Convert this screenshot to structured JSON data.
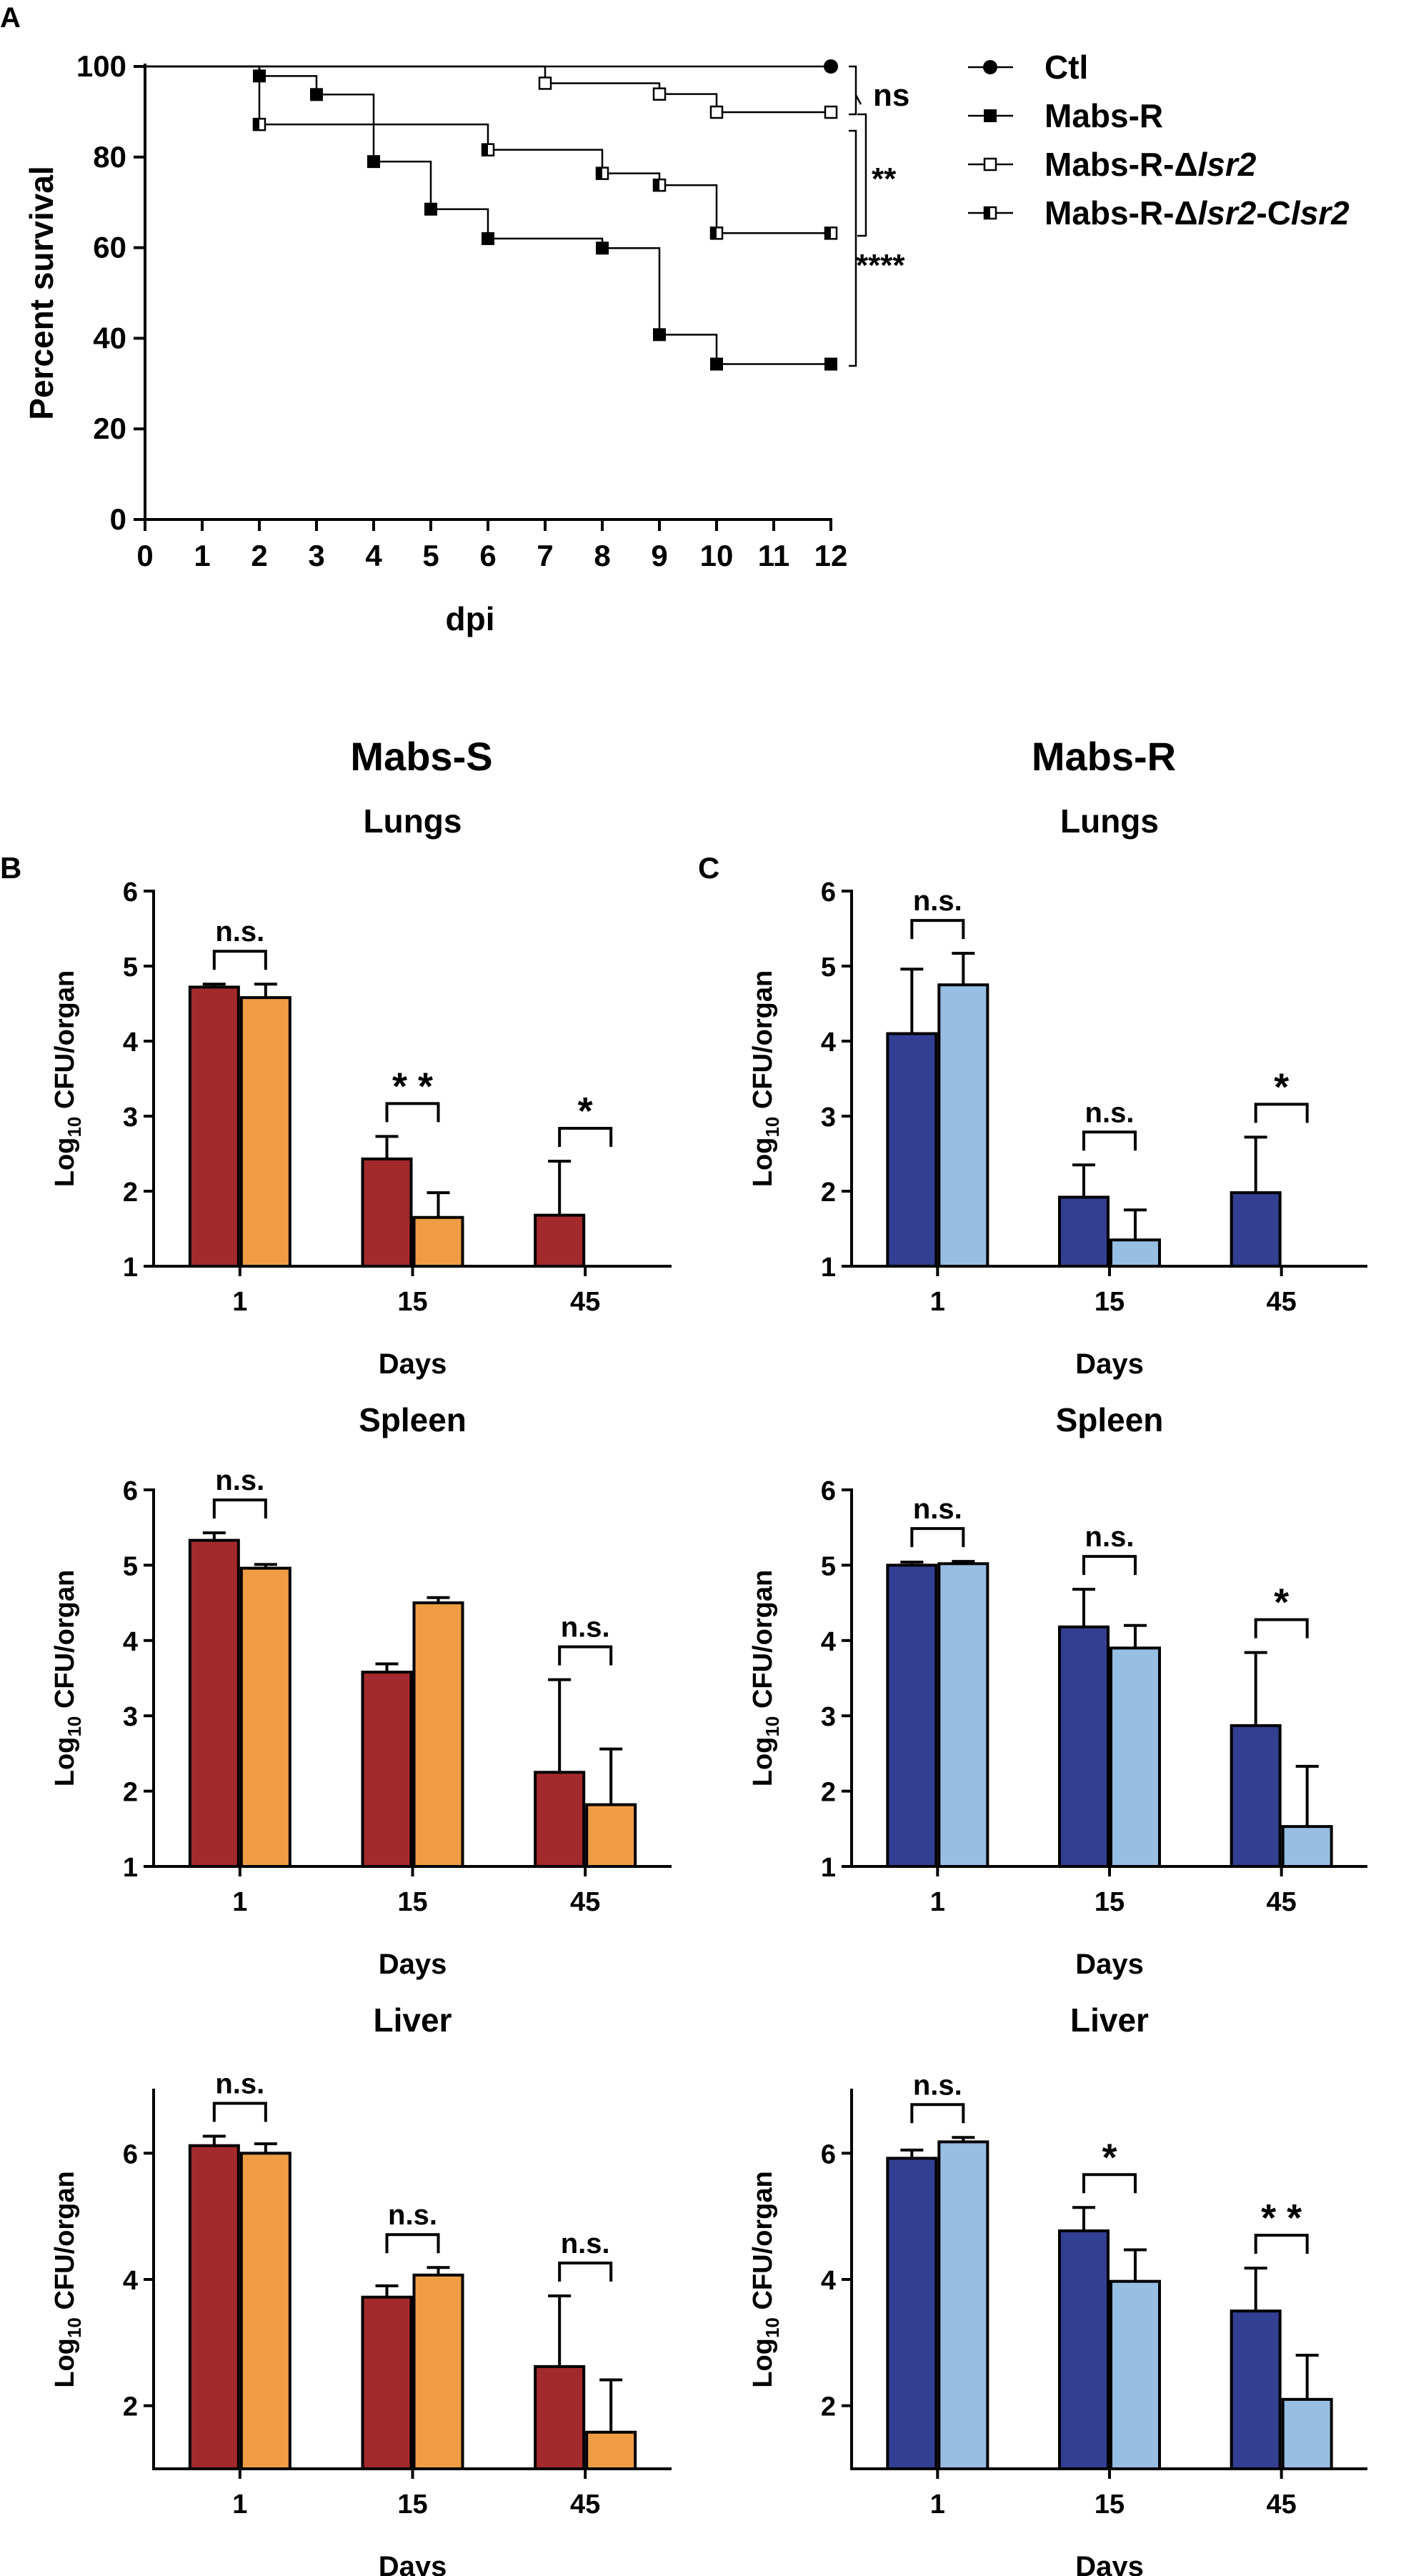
{
  "figure": {
    "column_titles": [
      "Mabs-S",
      "Mabs-R"
    ]
  },
  "chart_data": [
    {
      "panel_label": "A",
      "type": "line",
      "subtype": "kaplan-meier",
      "title": "",
      "xlabel": "dpi",
      "ylabel": "Percent survival",
      "xlim": [
        0,
        12
      ],
      "ylim": [
        0,
        100
      ],
      "xticks": [
        "0",
        "1",
        "2",
        "3",
        "4",
        "5",
        "6",
        "7",
        "8",
        "9",
        "10",
        "11",
        "12"
      ],
      "yticks": [
        "0",
        "20",
        "40",
        "60",
        "80",
        "100"
      ],
      "legend_position": "right",
      "series": [
        {
          "name": "Ctl",
          "marker": "circle",
          "steps": [
            [
              0,
              100
            ],
            [
              12,
              100
            ]
          ],
          "marks": [
            [
              12,
              100
            ]
          ]
        },
        {
          "name": "Mabs-R",
          "marker": "square-filled",
          "steps": [
            [
              0,
              100
            ],
            [
              2,
              97.9
            ],
            [
              3,
              93.8
            ],
            [
              4,
              79
            ],
            [
              5,
              68.5
            ],
            [
              6,
              62
            ],
            [
              8,
              59.9
            ],
            [
              9,
              40.8
            ],
            [
              10,
              34.3
            ],
            [
              12,
              34.3
            ]
          ],
          "marks": [
            [
              2,
              97.9
            ],
            [
              3,
              93.8
            ],
            [
              4,
              79
            ],
            [
              5,
              68.5
            ],
            [
              6,
              62
            ],
            [
              8,
              59.9
            ],
            [
              9,
              40.8
            ],
            [
              10,
              34.3
            ],
            [
              12,
              34.3
            ]
          ]
        },
        {
          "name": "Mabs-R-Δlsr2",
          "name_prefix": "Mabs-R-Δ",
          "name_italic": "lsr2",
          "marker": "square-open",
          "steps": [
            [
              0,
              100
            ],
            [
              7,
              96.3
            ],
            [
              9,
              93.9
            ],
            [
              10,
              89.9
            ],
            [
              12,
              89.9
            ]
          ],
          "marks": [
            [
              7,
              96.3
            ],
            [
              9,
              93.9
            ],
            [
              10,
              89.9
            ],
            [
              12,
              89.9
            ]
          ]
        },
        {
          "name": "Mabs-R-Δlsr2-Clsr2",
          "name_prefix": "Mabs-R-Δ",
          "name_italic": "lsr2",
          "name_mid": "-C",
          "name_italic2": "lsr2",
          "marker": "square-half",
          "steps": [
            [
              0,
              100
            ],
            [
              2,
              87.2
            ],
            [
              6,
              81.6
            ],
            [
              8,
              76.4
            ],
            [
              9,
              73.8
            ],
            [
              10,
              63.2
            ],
            [
              12,
              63.2
            ]
          ],
          "marks": [
            [
              2,
              87.2
            ],
            [
              6,
              81.6
            ],
            [
              8,
              76.4
            ],
            [
              9,
              73.8
            ],
            [
              10,
              63.2
            ],
            [
              12,
              63.2
            ]
          ]
        }
      ],
      "annotations": [
        "ns",
        "**",
        "****"
      ]
    },
    {
      "panel_label": "B",
      "type": "bar",
      "title": "Lungs",
      "strain": "Mabs-S",
      "xlabel": "Days",
      "ylabel_prefix": "Log",
      "ylabel_sub": "10",
      "ylabel_suffix": " CFU/organ",
      "categories": [
        "1",
        "15",
        "45"
      ],
      "ylim": [
        1,
        6
      ],
      "yticks": [
        "1",
        "2",
        "3",
        "4",
        "5",
        "6"
      ],
      "colors": [
        "#A32A2C",
        "#EE9D45"
      ],
      "series": [
        {
          "values": [
            4.72,
            2.43,
            1.68
          ],
          "errors": [
            0.04,
            0.3,
            0.72
          ]
        },
        {
          "values": [
            4.58,
            1.65,
            null
          ],
          "errors": [
            0.18,
            0.33,
            null
          ]
        }
      ],
      "significance": [
        "n.s.",
        "* *",
        "*"
      ]
    },
    {
      "panel_label": "C",
      "type": "bar",
      "title": "Lungs",
      "strain": "Mabs-R",
      "xlabel": "Days",
      "ylabel_prefix": "Log",
      "ylabel_sub": "10",
      "ylabel_suffix": " CFU/organ",
      "categories": [
        "1",
        "15",
        "45"
      ],
      "ylim": [
        1,
        6
      ],
      "yticks": [
        "1",
        "2",
        "3",
        "4",
        "5",
        "6"
      ],
      "colors": [
        "#333F92",
        "#97BEE3"
      ],
      "series": [
        {
          "values": [
            4.1,
            1.92,
            1.98
          ],
          "errors": [
            0.86,
            0.43,
            0.74
          ]
        },
        {
          "values": [
            4.75,
            1.35,
            null
          ],
          "errors": [
            0.42,
            0.4,
            null
          ]
        }
      ],
      "significance": [
        "n.s.",
        "n.s.",
        "*"
      ]
    },
    {
      "panel_label": "",
      "type": "bar",
      "title": "Spleen",
      "strain": "Mabs-S",
      "xlabel": "Days",
      "ylabel_prefix": "Log",
      "ylabel_sub": "10",
      "ylabel_suffix": " CFU/organ",
      "categories": [
        "1",
        "15",
        "45"
      ],
      "ylim": [
        1,
        6
      ],
      "yticks": [
        "1",
        "2",
        "3",
        "4",
        "5",
        "6"
      ],
      "colors": [
        "#A32A2C",
        "#EE9D45"
      ],
      "series": [
        {
          "values": [
            5.33,
            3.58,
            2.25
          ],
          "errors": [
            0.1,
            0.11,
            1.23
          ]
        },
        {
          "values": [
            4.96,
            4.5,
            1.82
          ],
          "errors": [
            0.05,
            0.07,
            0.74
          ]
        }
      ],
      "significance": [
        "n.s.",
        "",
        "n.s."
      ]
    },
    {
      "panel_label": "",
      "type": "bar",
      "title": "Spleen",
      "strain": "Mabs-R",
      "xlabel": "Days",
      "ylabel_prefix": "Log",
      "ylabel_sub": "10",
      "ylabel_suffix": " CFU/organ",
      "categories": [
        "1",
        "15",
        "45"
      ],
      "ylim": [
        1,
        6
      ],
      "yticks": [
        "1",
        "2",
        "3",
        "4",
        "5",
        "6"
      ],
      "colors": [
        "#333F92",
        "#97BEE3"
      ],
      "series": [
        {
          "values": [
            5.0,
            4.18,
            2.87
          ],
          "errors": [
            0.04,
            0.5,
            0.97
          ]
        },
        {
          "values": [
            5.02,
            3.9,
            1.53
          ],
          "errors": [
            0.03,
            0.3,
            0.8
          ]
        }
      ],
      "significance": [
        "n.s.",
        "n.s.",
        "*"
      ]
    },
    {
      "panel_label": "",
      "type": "bar",
      "title": "Liver",
      "strain": "Mabs-S",
      "xlabel": "Days",
      "ylabel_prefix": "Log",
      "ylabel_sub": "10",
      "ylabel_suffix": " CFU/organ",
      "categories": [
        "1",
        "15",
        "45"
      ],
      "ylim": [
        1,
        7
      ],
      "yticks": [
        "2",
        "4",
        "6"
      ],
      "colors": [
        "#A32A2C",
        "#EE9D45"
      ],
      "series": [
        {
          "values": [
            6.12,
            3.72,
            2.62
          ],
          "errors": [
            0.15,
            0.18,
            1.12
          ]
        },
        {
          "values": [
            6.0,
            4.07,
            1.58
          ],
          "errors": [
            0.15,
            0.12,
            0.83
          ]
        }
      ],
      "significance": [
        "n.s.",
        "n.s.",
        "n.s."
      ]
    },
    {
      "panel_label": "",
      "type": "bar",
      "title": "Liver",
      "strain": "Mabs-R",
      "xlabel": "Days",
      "ylabel_prefix": "Log",
      "ylabel_sub": "10",
      "ylabel_suffix": " CFU/organ",
      "categories": [
        "1",
        "15",
        "45"
      ],
      "ylim": [
        1,
        7
      ],
      "yticks": [
        "2",
        "4",
        "6"
      ],
      "colors": [
        "#333F92",
        "#97BEE3"
      ],
      "series": [
        {
          "values": [
            5.92,
            4.77,
            3.5
          ],
          "errors": [
            0.13,
            0.37,
            0.68
          ]
        },
        {
          "values": [
            6.18,
            3.97,
            2.1
          ],
          "errors": [
            0.07,
            0.5,
            0.7
          ]
        }
      ],
      "significance": [
        "n.s.",
        "*",
        "* *"
      ]
    }
  ]
}
